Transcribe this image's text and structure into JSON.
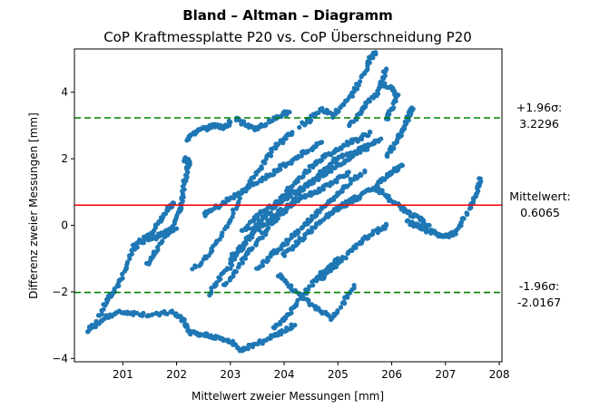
{
  "chart_data": {
    "type": "scatter",
    "title": "Bland – Altman – Diagramm",
    "subtitle": "CoP Kraftmessplatte P20 vs. CoP Überschneidung P20",
    "xlabel": "Mittelwert zweier Messungen [mm]",
    "ylabel": "Differenz zweier Messungen [mm]",
    "xlim": [
      200.1,
      208.05
    ],
    "ylim": [
      -4.1,
      5.3
    ],
    "xticks": [
      "201",
      "202",
      "203",
      "204",
      "205",
      "206",
      "207",
      "208"
    ],
    "yticks": [
      "−4",
      "−2",
      "0",
      "2",
      "4"
    ],
    "grid": false,
    "mean_line": {
      "value": 0.6065,
      "label": "Mittelwert:",
      "value_label": "0.6065",
      "color": "#ff0000"
    },
    "upper_loa": {
      "value": 3.2296,
      "label": "+1.96σ:",
      "value_label": "3.2296",
      "color": "#008000"
    },
    "lower_loa": {
      "value": -2.0167,
      "label": "-1.96σ:",
      "value_label": "-2.0167",
      "color": "#008000"
    },
    "point_color": "#1f77b4",
    "traces": [
      [
        [
          200.35,
          -3.2
        ],
        [
          200.5,
          -2.9
        ],
        [
          200.7,
          -2.3
        ],
        [
          200.85,
          -1.95
        ],
        [
          201.0,
          -1.5
        ],
        [
          201.15,
          -0.9
        ],
        [
          201.3,
          -0.5
        ],
        [
          201.5,
          -0.25
        ],
        [
          201.7,
          0.1
        ],
        [
          201.85,
          0.5
        ],
        [
          201.95,
          0.65
        ]
      ],
      [
        [
          200.5,
          -3.0
        ],
        [
          200.75,
          -2.7
        ],
        [
          201.0,
          -2.6
        ],
        [
          201.3,
          -2.65
        ],
        [
          201.6,
          -2.7
        ],
        [
          201.9,
          -2.6
        ],
        [
          202.1,
          -2.8
        ],
        [
          202.2,
          -3.05
        ]
      ],
      [
        [
          201.45,
          -1.2
        ],
        [
          201.6,
          -0.8
        ],
        [
          201.8,
          -0.3
        ],
        [
          201.95,
          0.0
        ],
        [
          202.05,
          0.4
        ],
        [
          202.1,
          0.7
        ],
        [
          202.15,
          1.3
        ],
        [
          202.2,
          1.7
        ],
        [
          202.25,
          1.9
        ],
        [
          202.15,
          2.0
        ]
      ],
      [
        [
          201.2,
          -0.6
        ],
        [
          201.4,
          -0.45
        ],
        [
          201.6,
          -0.35
        ],
        [
          201.8,
          -0.2
        ],
        [
          202.0,
          -0.1
        ]
      ],
      [
        [
          202.2,
          2.6
        ],
        [
          202.35,
          2.8
        ],
        [
          202.5,
          2.9
        ],
        [
          202.7,
          3.0
        ],
        [
          202.9,
          2.95
        ],
        [
          203.0,
          3.1
        ]
      ],
      [
        [
          202.3,
          -1.3
        ],
        [
          202.6,
          -0.9
        ],
        [
          202.8,
          -0.4
        ],
        [
          203.0,
          0.2
        ],
        [
          203.2,
          0.9
        ],
        [
          203.4,
          1.4
        ],
        [
          203.6,
          1.8
        ],
        [
          203.8,
          2.3
        ],
        [
          204.0,
          2.6
        ],
        [
          204.15,
          2.8
        ]
      ],
      [
        [
          202.6,
          -2.1
        ],
        [
          202.8,
          -1.6
        ],
        [
          203.0,
          -1.2
        ],
        [
          203.2,
          -0.7
        ],
        [
          203.4,
          -0.2
        ],
        [
          203.6,
          0.2
        ],
        [
          203.8,
          0.5
        ],
        [
          204.0,
          0.9
        ],
        [
          204.2,
          1.3
        ],
        [
          204.4,
          1.6
        ],
        [
          204.6,
          1.9
        ],
        [
          204.8,
          2.1
        ],
        [
          205.0,
          2.3
        ],
        [
          205.2,
          2.5
        ],
        [
          205.4,
          2.6
        ],
        [
          205.6,
          2.8
        ]
      ],
      [
        [
          202.9,
          -1.8
        ],
        [
          203.1,
          -1.4
        ],
        [
          203.3,
          -0.9
        ],
        [
          203.5,
          -0.5
        ],
        [
          203.7,
          -0.1
        ],
        [
          203.9,
          0.3
        ],
        [
          204.1,
          0.6
        ],
        [
          204.3,
          1.0
        ],
        [
          204.5,
          1.3
        ],
        [
          204.7,
          1.6
        ],
        [
          204.9,
          1.9
        ],
        [
          205.1,
          2.1
        ],
        [
          205.3,
          2.2
        ],
        [
          205.5,
          2.4
        ]
      ],
      [
        [
          203.0,
          -1.0
        ],
        [
          203.2,
          -0.6
        ],
        [
          203.4,
          -0.3
        ],
        [
          203.6,
          0.0
        ],
        [
          203.8,
          0.3
        ],
        [
          204.0,
          0.5
        ],
        [
          204.2,
          0.7
        ],
        [
          204.4,
          0.9
        ],
        [
          204.6,
          1.0
        ],
        [
          204.8,
          1.2
        ],
        [
          205.0,
          1.4
        ],
        [
          205.2,
          1.6
        ]
      ],
      [
        [
          203.2,
          -0.2
        ],
        [
          203.4,
          0.1
        ],
        [
          203.6,
          0.4
        ],
        [
          203.8,
          0.6
        ],
        [
          204.0,
          0.8
        ],
        [
          204.2,
          1.0
        ],
        [
          204.4,
          1.2
        ],
        [
          204.6,
          1.4
        ],
        [
          204.8,
          1.6
        ],
        [
          205.0,
          1.8
        ],
        [
          205.2,
          2.0
        ],
        [
          205.4,
          2.2
        ],
        [
          205.6,
          2.4
        ],
        [
          205.8,
          2.6
        ]
      ],
      [
        [
          203.5,
          -1.3
        ],
        [
          203.7,
          -1.0
        ],
        [
          203.9,
          -0.7
        ],
        [
          204.1,
          -0.4
        ],
        [
          204.3,
          -0.1
        ],
        [
          204.5,
          0.2
        ],
        [
          204.7,
          0.5
        ],
        [
          204.9,
          0.8
        ],
        [
          205.1,
          1.1
        ],
        [
          205.3,
          1.4
        ],
        [
          205.5,
          1.6
        ]
      ],
      [
        [
          204.3,
          3.0
        ],
        [
          204.5,
          3.2
        ],
        [
          204.7,
          3.5
        ],
        [
          204.9,
          3.3
        ],
        [
          205.1,
          3.6
        ],
        [
          205.3,
          4.0
        ],
        [
          205.5,
          4.6
        ],
        [
          205.6,
          5.0
        ],
        [
          205.7,
          5.2
        ]
      ],
      [
        [
          205.2,
          3.0
        ],
        [
          205.4,
          3.3
        ],
        [
          205.5,
          3.6
        ],
        [
          205.7,
          3.9
        ],
        [
          205.8,
          4.3
        ],
        [
          205.9,
          4.7
        ]
      ],
      [
        [
          205.8,
          4.3
        ],
        [
          206.0,
          4.1
        ],
        [
          206.1,
          3.9
        ],
        [
          206.0,
          3.5
        ],
        [
          205.9,
          3.2
        ]
      ],
      [
        [
          205.9,
          2.1
        ],
        [
          206.05,
          2.4
        ],
        [
          206.15,
          2.7
        ],
        [
          206.25,
          3.0
        ],
        [
          206.3,
          3.2
        ],
        [
          206.35,
          3.4
        ],
        [
          206.4,
          3.5
        ]
      ],
      [
        [
          205.7,
          1.2
        ],
        [
          205.85,
          1.4
        ],
        [
          206.0,
          1.6
        ],
        [
          206.1,
          1.7
        ],
        [
          206.2,
          1.8
        ]
      ],
      [
        [
          203.9,
          -1.5
        ],
        [
          204.1,
          -1.8
        ],
        [
          204.3,
          -2.1
        ],
        [
          204.5,
          -2.4
        ],
        [
          204.7,
          -2.6
        ],
        [
          204.9,
          -2.8
        ],
        [
          205.1,
          -2.3
        ],
        [
          205.3,
          -1.8
        ]
      ],
      [
        [
          204.7,
          -1.6
        ],
        [
          204.9,
          -1.3
        ],
        [
          205.1,
          -1.0
        ],
        [
          205.3,
          -0.7
        ],
        [
          205.5,
          -0.4
        ],
        [
          205.7,
          -0.2
        ],
        [
          205.9,
          0.0
        ]
      ],
      [
        [
          202.2,
          -3.2
        ],
        [
          202.4,
          -3.3
        ],
        [
          202.6,
          -3.3
        ],
        [
          202.8,
          -3.4
        ],
        [
          203.0,
          -3.5
        ],
        [
          203.2,
          -3.75
        ],
        [
          203.4,
          -3.6
        ],
        [
          203.6,
          -3.5
        ],
        [
          203.8,
          -3.3
        ],
        [
          204.0,
          -3.2
        ],
        [
          204.2,
          -3.0
        ]
      ],
      [
        [
          203.8,
          -3.1
        ],
        [
          204.0,
          -2.8
        ],
        [
          204.2,
          -2.4
        ],
        [
          204.4,
          -2.0
        ],
        [
          204.6,
          -1.6
        ],
        [
          204.8,
          -1.3
        ],
        [
          205.0,
          -1.0
        ]
      ],
      [
        [
          204.0,
          -0.9
        ],
        [
          204.2,
          -0.6
        ],
        [
          204.4,
          -0.3
        ],
        [
          204.6,
          0.0
        ],
        [
          204.8,
          0.3
        ],
        [
          205.0,
          0.5
        ],
        [
          205.2,
          0.7
        ],
        [
          205.4,
          0.8
        ]
      ],
      [
        [
          204.9,
          0.4
        ],
        [
          205.1,
          0.6
        ],
        [
          205.3,
          0.8
        ],
        [
          205.5,
          1.0
        ],
        [
          205.7,
          1.1
        ],
        [
          205.9,
          0.9
        ],
        [
          206.1,
          0.6
        ],
        [
          206.3,
          0.4
        ],
        [
          206.5,
          0.2
        ],
        [
          206.7,
          0.0
        ]
      ],
      [
        [
          206.3,
          0.1
        ],
        [
          206.45,
          0.0
        ],
        [
          206.6,
          -0.1
        ],
        [
          206.75,
          -0.2
        ],
        [
          206.9,
          -0.3
        ],
        [
          207.05,
          -0.3
        ],
        [
          207.2,
          -0.2
        ],
        [
          207.35,
          0.2
        ],
        [
          207.5,
          0.7
        ],
        [
          207.6,
          1.1
        ],
        [
          207.65,
          1.4
        ]
      ],
      [
        [
          203.3,
          1.1
        ],
        [
          203.5,
          1.3
        ],
        [
          203.7,
          1.5
        ],
        [
          203.9,
          1.7
        ],
        [
          204.1,
          1.9
        ],
        [
          204.3,
          2.1
        ],
        [
          204.5,
          2.3
        ],
        [
          204.7,
          2.5
        ]
      ],
      [
        [
          202.5,
          0.3
        ],
        [
          202.7,
          0.5
        ],
        [
          202.9,
          0.7
        ],
        [
          203.1,
          0.9
        ],
        [
          203.3,
          1.1
        ]
      ],
      [
        [
          203.1,
          3.2
        ],
        [
          203.3,
          3.0
        ],
        [
          203.5,
          2.9
        ],
        [
          203.7,
          3.1
        ],
        [
          203.9,
          3.3
        ],
        [
          204.1,
          3.4
        ]
      ]
    ]
  }
}
